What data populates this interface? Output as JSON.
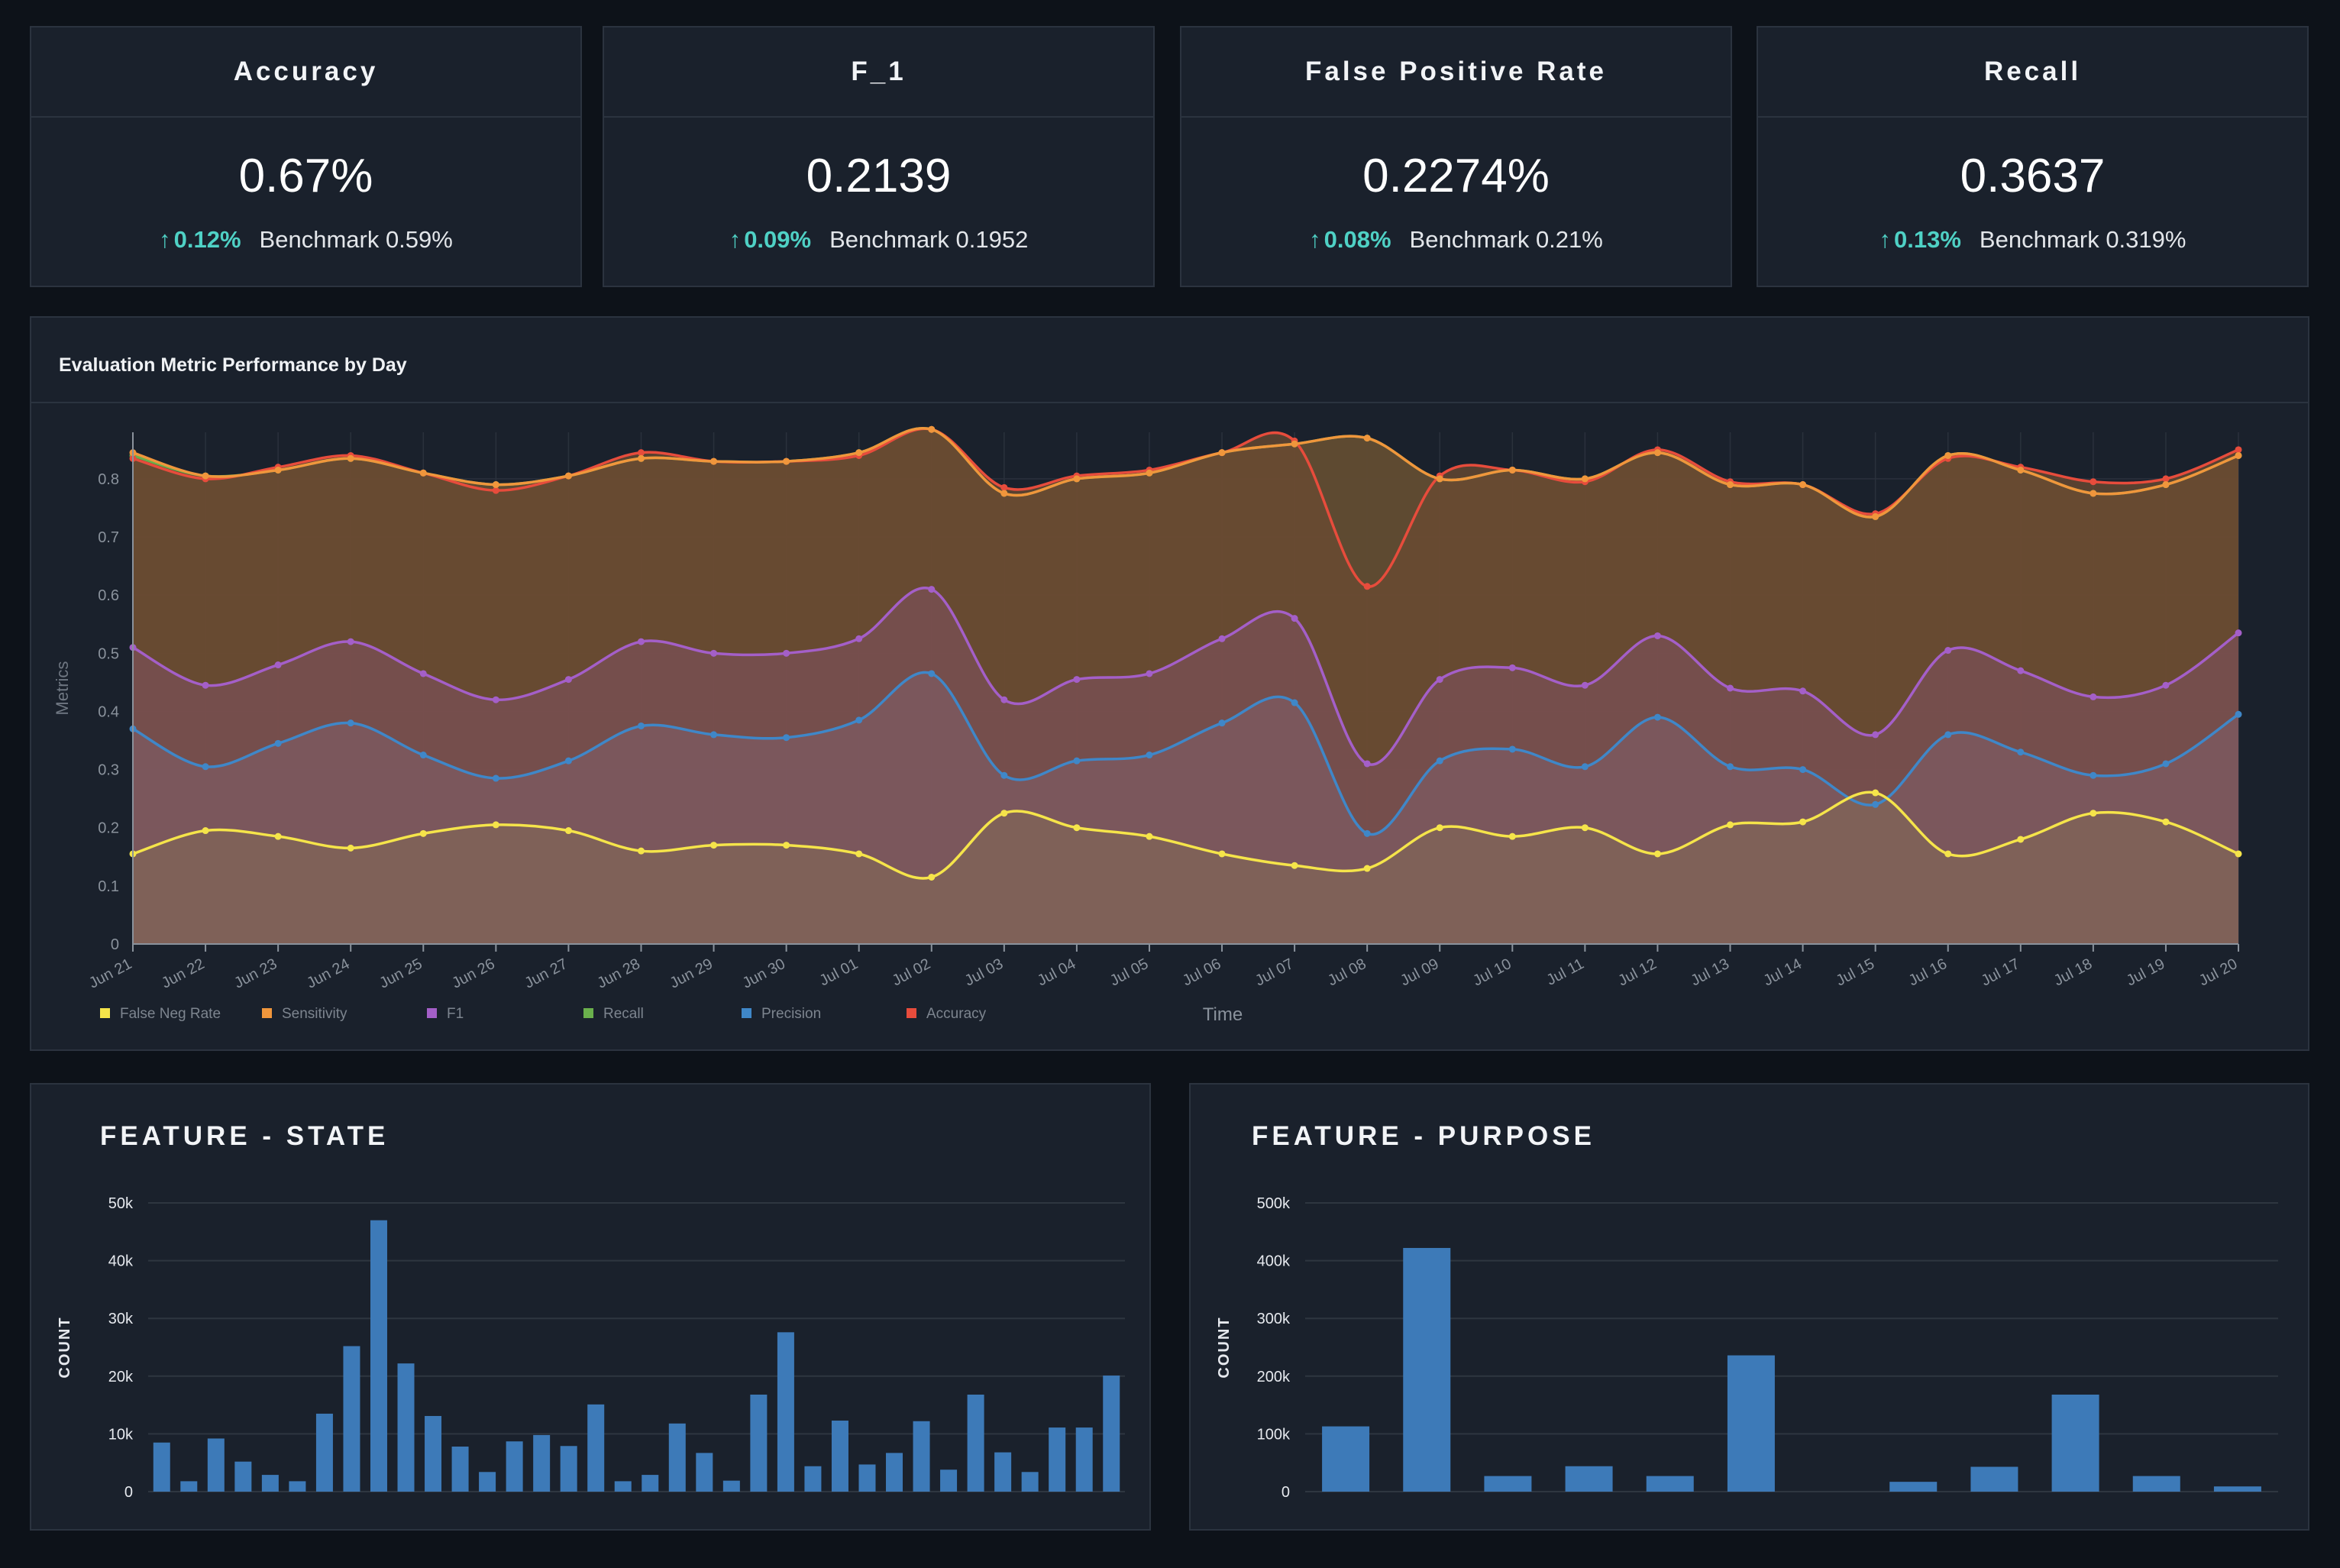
{
  "kpis": [
    {
      "title": "Accuracy",
      "value": "0.67%",
      "delta": "0.12%",
      "benchmark": "Benchmark 0.59%"
    },
    {
      "title": "F_1",
      "value": "0.2139",
      "delta": "0.09%",
      "benchmark": "Benchmark 0.1952"
    },
    {
      "title": "False Positive Rate",
      "value": "0.2274%",
      "delta": "0.08%",
      "benchmark": "Benchmark 0.21%"
    },
    {
      "title": "Recall",
      "value": "0.3637",
      "delta": "0.13%",
      "benchmark": "Benchmark 0.319%"
    }
  ],
  "colors": {
    "accent_up": "#4fd1c5",
    "bar": "#3d7ab8"
  },
  "chart_data": [
    {
      "type": "area",
      "title": "Evaluation Metric Performance by Day",
      "xlabel": "Time",
      "ylabel": "Metrics",
      "ylim": [
        0,
        0.88
      ],
      "yticks": [
        0,
        0.1,
        0.2,
        0.3,
        0.4,
        0.5,
        0.6,
        0.7,
        0.8
      ],
      "grid": true,
      "legend": "bottom-left",
      "x": [
        "Jun 21",
        "Jun 22",
        "Jun 23",
        "Jun 24",
        "Jun 25",
        "Jun 26",
        "Jun 27",
        "Jun 28",
        "Jun 29",
        "Jun 30",
        "Jul 01",
        "Jul 02",
        "Jul 03",
        "Jul 04",
        "Jul 05",
        "Jul 06",
        "Jul 07",
        "Jul 08",
        "Jul 09",
        "Jul 10",
        "Jul 11",
        "Jul 12",
        "Jul 13",
        "Jul 14",
        "Jul 15",
        "Jul 16",
        "Jul 17",
        "Jul 18",
        "Jul 19",
        "Jul 20"
      ],
      "series": [
        {
          "name": "Recall",
          "color": "#6ab04c",
          "fill": "#3a5530",
          "values": [
            0.84,
            0.805,
            0.815,
            0.835,
            0.81,
            0.79,
            0.805,
            0.835,
            0.83,
            0.83,
            0.845,
            0.885,
            0.775,
            0.8,
            0.81,
            0.845,
            0.86,
            0.87,
            0.8,
            0.815,
            0.8,
            0.845,
            0.79,
            0.79,
            0.735,
            0.84,
            0.815,
            0.775,
            0.79,
            0.84
          ]
        },
        {
          "name": "Accuracy",
          "color": "#e74c3c",
          "fill": "#6a4a32",
          "values": [
            0.835,
            0.8,
            0.82,
            0.84,
            0.81,
            0.78,
            0.805,
            0.845,
            0.83,
            0.83,
            0.84,
            0.885,
            0.785,
            0.805,
            0.815,
            0.845,
            0.865,
            0.615,
            0.805,
            0.815,
            0.795,
            0.85,
            0.795,
            0.79,
            0.74,
            0.835,
            0.82,
            0.795,
            0.8,
            0.85
          ]
        },
        {
          "name": "Sensitivity",
          "color": "#f0963c",
          "fill": "#6a4a32",
          "values": [
            0.845,
            0.805,
            0.815,
            0.835,
            0.81,
            0.79,
            0.805,
            0.835,
            0.83,
            0.83,
            0.845,
            0.885,
            0.775,
            0.8,
            0.81,
            0.845,
            0.86,
            0.87,
            0.8,
            0.815,
            0.8,
            0.845,
            0.79,
            0.79,
            0.735,
            0.84,
            0.815,
            0.775,
            0.79,
            0.84
          ]
        },
        {
          "name": "F1",
          "color": "#a45fc8",
          "fill": "#7a4f55",
          "values": [
            0.51,
            0.445,
            0.48,
            0.52,
            0.465,
            0.42,
            0.455,
            0.52,
            0.5,
            0.5,
            0.525,
            0.61,
            0.42,
            0.455,
            0.465,
            0.525,
            0.56,
            0.31,
            0.455,
            0.475,
            0.445,
            0.53,
            0.44,
            0.435,
            0.36,
            0.505,
            0.47,
            0.425,
            0.445,
            0.535
          ]
        },
        {
          "name": "Precision",
          "color": "#3f87c8",
          "fill": "#7c5a62",
          "values": [
            0.37,
            0.305,
            0.345,
            0.38,
            0.325,
            0.285,
            0.315,
            0.375,
            0.36,
            0.355,
            0.385,
            0.465,
            0.29,
            0.315,
            0.325,
            0.38,
            0.415,
            0.19,
            0.315,
            0.335,
            0.305,
            0.39,
            0.305,
            0.3,
            0.24,
            0.36,
            0.33,
            0.29,
            0.31,
            0.395
          ]
        },
        {
          "name": "False Neg Rate",
          "color": "#f5e44a",
          "fill": "#806457",
          "values": [
            0.155,
            0.195,
            0.185,
            0.165,
            0.19,
            0.205,
            0.195,
            0.16,
            0.17,
            0.17,
            0.155,
            0.115,
            0.225,
            0.2,
            0.185,
            0.155,
            0.135,
            0.13,
            0.2,
            0.185,
            0.2,
            0.155,
            0.205,
            0.21,
            0.26,
            0.155,
            0.18,
            0.225,
            0.21,
            0.155
          ]
        }
      ],
      "legend_order": [
        "False Neg Rate",
        "Sensitivity",
        "F1",
        "Recall",
        "Precision",
        "Accuracy"
      ]
    },
    {
      "type": "bar",
      "title": "FEATURE - STATE",
      "ylabel": "COUNT",
      "ylim": [
        0,
        50000
      ],
      "yticks": [
        0,
        10000,
        20000,
        30000,
        40000,
        50000
      ],
      "ytick_labels": [
        "0",
        "10k",
        "20k",
        "30k",
        "40k",
        "50k"
      ],
      "values": [
        8500,
        1800,
        9200,
        5200,
        2900,
        1800,
        13500,
        25200,
        47000,
        22200,
        13100,
        7800,
        3400,
        8700,
        9800,
        7900,
        15100,
        1800,
        2900,
        11800,
        6700,
        1900,
        16800,
        27600,
        4400,
        12300,
        4700,
        6700,
        12200,
        3800,
        16800,
        6800,
        3400,
        11100,
        11100,
        20100
      ]
    },
    {
      "type": "bar",
      "title": "FEATURE - PURPOSE",
      "ylabel": "COUNT",
      "ylim": [
        0,
        500000
      ],
      "yticks": [
        0,
        100000,
        200000,
        300000,
        400000,
        500000
      ],
      "ytick_labels": [
        "0",
        "100k",
        "200k",
        "300k",
        "400k",
        "500k"
      ],
      "values": [
        113000,
        422000,
        27000,
        44000,
        27000,
        236000,
        0,
        17000,
        43000,
        168000,
        27000,
        9000
      ]
    }
  ]
}
